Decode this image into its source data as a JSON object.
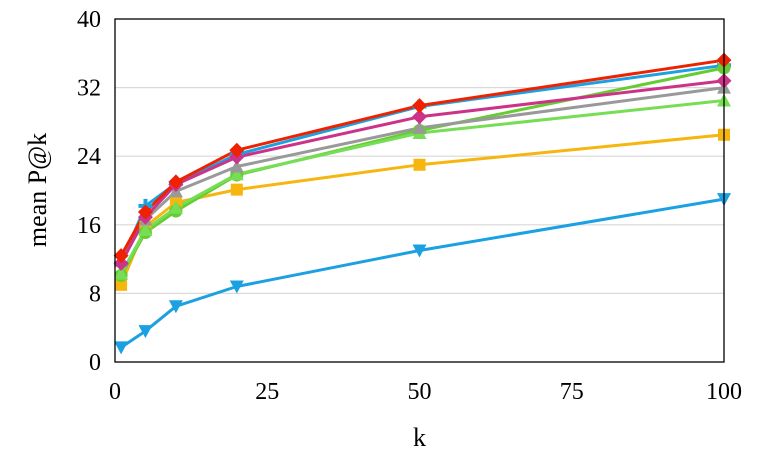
{
  "chart_data": {
    "type": "line",
    "title": "",
    "xlabel": "k",
    "ylabel": "mean P@k",
    "xlim": [
      0,
      100
    ],
    "ylim": [
      0,
      40
    ],
    "xticks": [
      0,
      25,
      50,
      75,
      100
    ],
    "yticks": [
      0,
      8,
      16,
      24,
      32,
      40
    ],
    "x_tick_labels": [
      "0",
      "25",
      "50",
      "75",
      "100"
    ],
    "y_tick_labels": [
      "0",
      "8",
      "16",
      "24",
      "32",
      "40"
    ],
    "grid": "horizontal",
    "legend": "none",
    "x": [
      1,
      5,
      10,
      20,
      50,
      100
    ],
    "series": [
      {
        "color": "#1ba1e2",
        "marker": "plus",
        "values": [
          11.5,
          18.2,
          20.8,
          24.2,
          29.8,
          34.6
        ]
      },
      {
        "color": "#1ba1e2",
        "marker": "triangle-down",
        "values": [
          1.7,
          3.6,
          6.5,
          8.8,
          13.0,
          19.0
        ]
      },
      {
        "color": "#f6b60f",
        "marker": "square",
        "values": [
          9.0,
          15.8,
          18.6,
          20.1,
          23.0,
          26.5
        ]
      },
      {
        "color": "#66cc33",
        "marker": "circle",
        "values": [
          10.1,
          15.1,
          17.6,
          21.8,
          27.0,
          34.3
        ]
      },
      {
        "color": "#77dd55",
        "marker": "triangle-up",
        "values": [
          10.3,
          15.4,
          18.0,
          21.9,
          26.7,
          30.5
        ]
      },
      {
        "color": "#999999",
        "marker": "triangle-up",
        "values": [
          11.8,
          16.6,
          19.9,
          22.8,
          27.3,
          32.0
        ]
      },
      {
        "color": "#cc3388",
        "marker": "diamond",
        "values": [
          11.5,
          16.9,
          20.7,
          23.9,
          28.6,
          32.8
        ]
      },
      {
        "color": "#ee2200",
        "marker": "diamond",
        "values": [
          12.4,
          17.5,
          21.0,
          24.7,
          29.9,
          35.2
        ]
      }
    ]
  }
}
